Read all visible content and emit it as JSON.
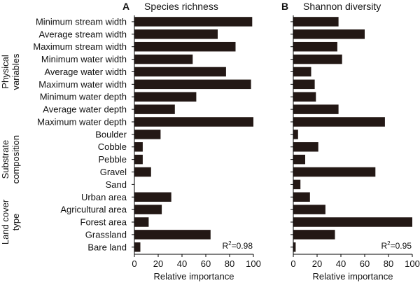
{
  "chart_data": [
    {
      "type": "bar",
      "orientation": "horizontal",
      "panel_letter": "A",
      "title": "Species richness",
      "xlabel": "Relative importance",
      "xlim": [
        0,
        100
      ],
      "xticks": [
        0,
        20,
        40,
        60,
        80,
        100
      ],
      "r2_label": "R",
      "r2_sup": "2",
      "r2_value": "=0.98",
      "categories": [
        "Minimum stream width",
        "Average stream width",
        "Maximum stream width",
        "Minimum water width",
        "Average water width",
        "Maximum water width",
        "Minimum water depth",
        "Average water depth",
        "Maximum water depth",
        "Boulder",
        "Cobble",
        "Pebble",
        "Gravel",
        "Sand",
        "Urban area",
        "Agricultural area",
        "Forest area",
        "Grassland",
        "Bare land"
      ],
      "values": [
        99,
        70,
        85,
        49,
        77,
        98,
        52,
        34,
        100,
        22,
        7,
        7,
        14,
        0,
        31,
        23,
        12,
        64,
        5
      ]
    },
    {
      "type": "bar",
      "orientation": "horizontal",
      "panel_letter": "B",
      "title": "Shannon diversity",
      "xlabel": "Relative importance",
      "xlim": [
        0,
        100
      ],
      "xticks": [
        0,
        20,
        40,
        60,
        80,
        100
      ],
      "r2_label": "R",
      "r2_sup": "2",
      "r2_value": "=0.95",
      "categories": [
        "Minimum stream width",
        "Average stream width",
        "Maximum stream width",
        "Minimum water width",
        "Average water width",
        "Maximum water width",
        "Minimum water depth",
        "Average water depth",
        "Maximum water depth",
        "Boulder",
        "Cobble",
        "Pebble",
        "Gravel",
        "Sand",
        "Urban area",
        "Agricultural area",
        "Forest area",
        "Grassland",
        "Bare land"
      ],
      "values": [
        38,
        60,
        37,
        41,
        15,
        18,
        19,
        38,
        77,
        4,
        21,
        10,
        69,
        6,
        14,
        27,
        100,
        35,
        2
      ]
    }
  ],
  "groups": [
    {
      "lines": [
        "Physical",
        "variables"
      ],
      "from": 0,
      "to": 8
    },
    {
      "lines": [
        "Substrate",
        "composition"
      ],
      "from": 9,
      "to": 13
    },
    {
      "lines": [
        "Land cover",
        "type"
      ],
      "from": 14,
      "to": 18
    }
  ],
  "colors": {
    "bar": "#231815",
    "axis": "#000000",
    "text": "#111111"
  }
}
